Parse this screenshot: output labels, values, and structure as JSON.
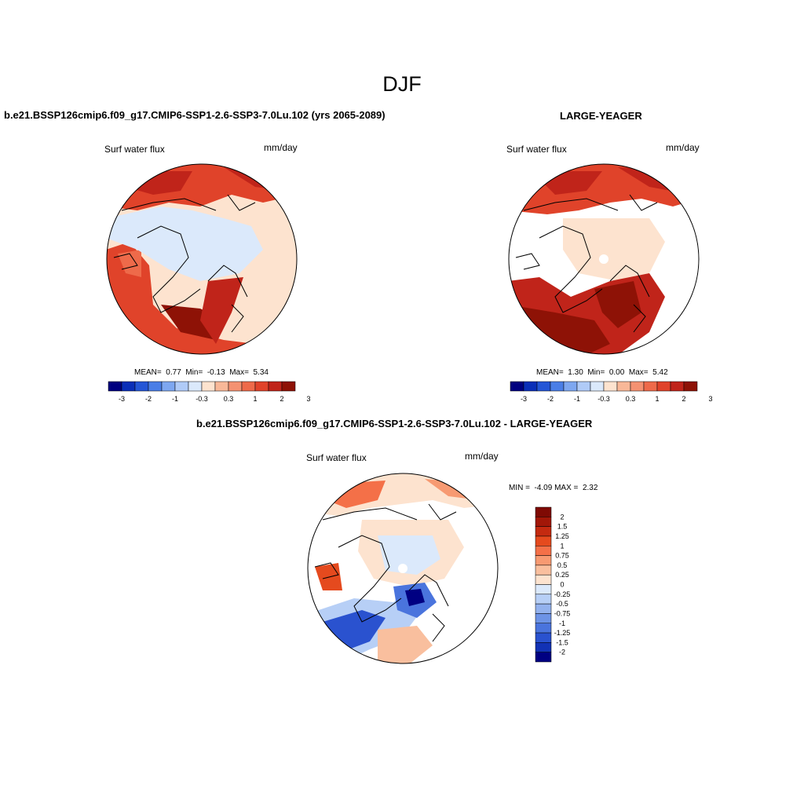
{
  "main_title": "DJF",
  "panels": [
    {
      "title": "b.e21.BSSP126cmip6.f09_g17.CMIP6-SSP1-2.6-SSP3-7.0Lu.102 (yrs 2065-2089)",
      "variable": "Surf water flux",
      "units": "mm/day",
      "stats": {
        "mean_label": "MEAN=",
        "mean": "0.77",
        "min_label": "Min=",
        "min": "-0.13",
        "max_label": "Max=",
        "max": "5.34"
      },
      "colorbar_labels": [
        "-3",
        "-2",
        "-1",
        "-0.3",
        "0.3",
        "1",
        "2",
        "3"
      ]
    },
    {
      "title": "LARGE-YEAGER",
      "variable": "Surf water flux",
      "units": "mm/day",
      "stats": {
        "mean_label": "MEAN=",
        "mean": "1.30",
        "min_label": "Min=",
        "min": "0.00",
        "max_label": "Max=",
        "max": "5.42"
      },
      "colorbar_labels": [
        "-3",
        "-2",
        "-1",
        "-0.3",
        "0.3",
        "1",
        "2",
        "3"
      ]
    },
    {
      "title": "b.e21.BSSP126cmip6.f09_g17.CMIP6-SSP1-2.6-SSP3-7.0Lu.102 - LARGE-YEAGER",
      "variable": "Surf water flux",
      "units": "mm/day",
      "minmax": {
        "min_label": "MIN =",
        "min": "-4.09",
        "max_label": "MAX =",
        "max": "2.32"
      },
      "colorbar_labels": [
        "2",
        "1.5",
        "1.25",
        "1",
        "0.75",
        "0.5",
        "0.25",
        "0",
        "-0.25",
        "-0.5",
        "-0.75",
        "-1",
        "-1.25",
        "-1.5",
        "-2"
      ]
    }
  ],
  "colors": {
    "abs_scale": [
      "#00007f",
      "#0a2fb8",
      "#2456d6",
      "#4a7ee6",
      "#7ea7f0",
      "#b0cbf7",
      "#dbe9fb",
      "#fde3cf",
      "#f8b898",
      "#f49272",
      "#ee6a4a",
      "#e0432a",
      "#c0241a",
      "#8e1206"
    ],
    "diff_scale": [
      "#7f0a04",
      "#a21708",
      "#c42a10",
      "#e54a1e",
      "#f47048",
      "#f79a72",
      "#f9bf9e",
      "#fde3cf",
      "#dbe9fb",
      "#b7cff6",
      "#93b2ee",
      "#6d93e6",
      "#4a74dd",
      "#2a52cf",
      "#1232b5",
      "#000082"
    ],
    "land_outline": "#000000"
  }
}
